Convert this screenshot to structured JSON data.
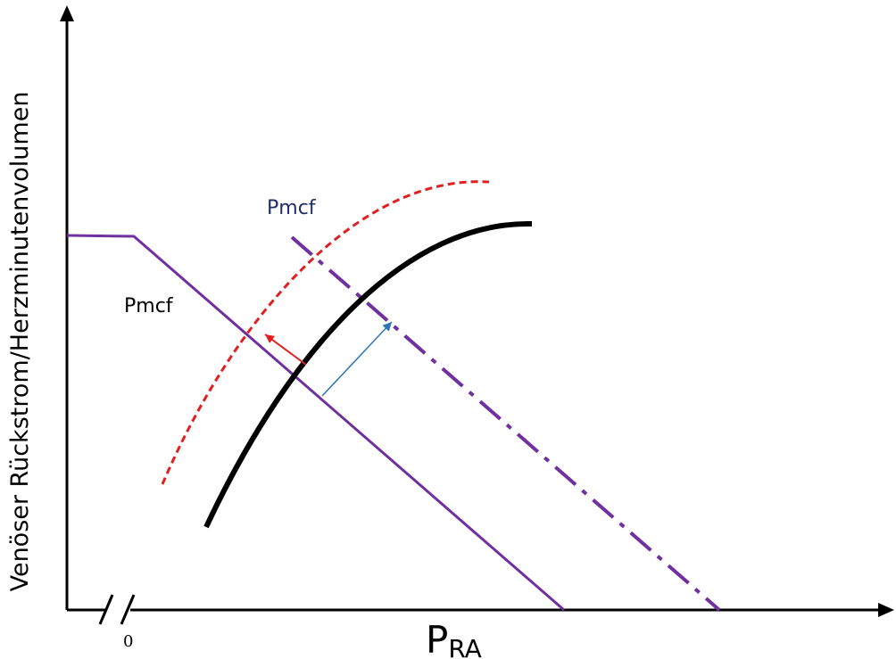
{
  "axes": {
    "y_label": "Venöser Rückstrom/Herzminutenvolumen",
    "x_label_main": "P",
    "x_label_sub": "RA",
    "x_origin_tick": "0"
  },
  "annotations": {
    "pmcf_lower": "Pmcf",
    "pmcf_upper": "Pmcf"
  },
  "colors": {
    "axis": "#000000",
    "venous_return": "#7030a0",
    "cardiac_function": "#000000",
    "cardiac_function_shifted": "#e02020",
    "arrow_red": "#e02020",
    "arrow_blue": "#2e75b6",
    "label_upper": "#1f2d6b",
    "label_lower": "#000000"
  },
  "icons": {
    "axis_break": "double-slash-break-icon",
    "arrowheads": "triangle-arrowhead-icon"
  }
}
